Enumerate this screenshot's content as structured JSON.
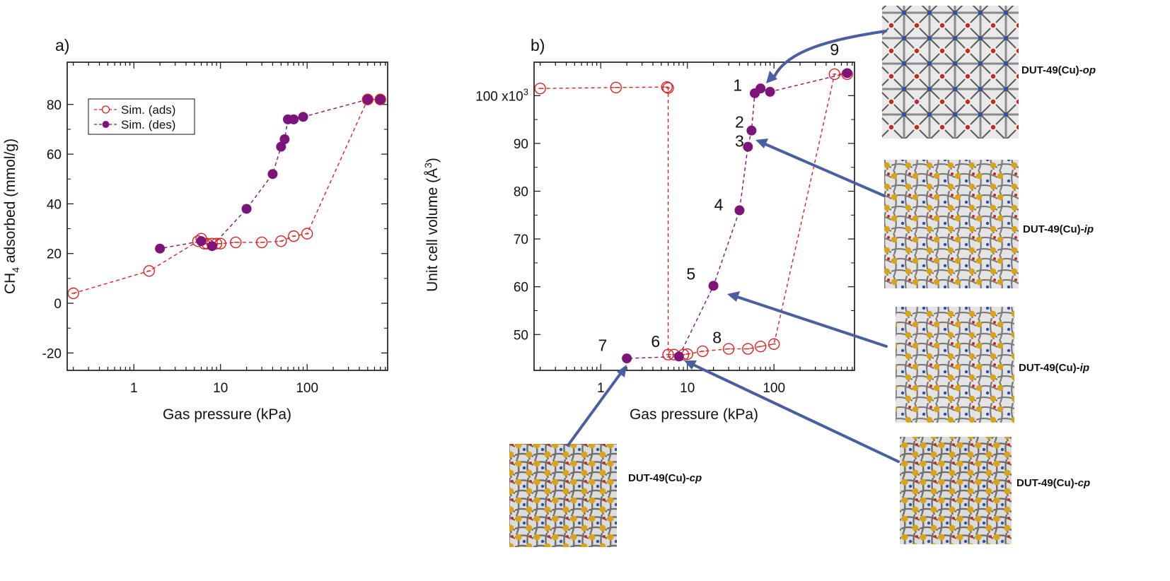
{
  "colors": {
    "ads": "#e02020",
    "des": "#7d1479",
    "arrow": "#4a5fa0",
    "frame": "#111111"
  },
  "chart_data": [
    {
      "type": "scatter",
      "panel_label": "a)",
      "xlabel": "Gas pressure (kPa)",
      "ylabel_main": "CH",
      "ylabel_sub": "4",
      "ylabel_rest": " adsorbed (mmol/g)",
      "xscale": "log",
      "xlim": [
        0.17,
        850
      ],
      "ylim": [
        -27,
        97
      ],
      "xticks": [
        {
          "value": 1,
          "label": "1"
        },
        {
          "value": 10,
          "label": "10"
        },
        {
          "value": 100,
          "label": "100"
        }
      ],
      "yticks": [
        -20,
        0,
        20,
        40,
        60,
        80
      ],
      "legend": {
        "position": "top-left",
        "entries": [
          "Sim. (ads)",
          "Sim. (des)"
        ]
      },
      "series": [
        {
          "name": "Sim. (ads)",
          "marker": "open-circle",
          "x": [
            0.2,
            1.5,
            5.5,
            6,
            6.5,
            7,
            8,
            9,
            10,
            15,
            30,
            50,
            70,
            100,
            500,
            700
          ],
          "y": [
            4,
            13,
            25,
            26,
            24,
            24,
            24,
            24,
            24,
            24.5,
            24.5,
            25,
            27,
            28,
            82,
            82
          ]
        },
        {
          "name": "Sim. (des)",
          "marker": "filled-circle",
          "x": [
            700,
            500,
            90,
            70,
            60,
            55,
            50,
            40,
            20,
            8,
            6,
            2
          ],
          "y": [
            82,
            82,
            75,
            74,
            74,
            66,
            63,
            52,
            38,
            23,
            25,
            22
          ]
        }
      ]
    },
    {
      "type": "scatter",
      "panel_label": "b)",
      "xlabel": "Gas pressure (kPa)",
      "ylabel_main": "Unit cell volume (Å",
      "ylabel_sup": "3",
      "ylabel_rest": ")",
      "xscale": "log",
      "xlim": [
        0.17,
        850
      ],
      "ylim": [
        42.5,
        107
      ],
      "xticks": [
        {
          "value": 1,
          "label": "1"
        },
        {
          "value": 10,
          "label": "10"
        },
        {
          "value": 100,
          "label": "100"
        }
      ],
      "yticks": [
        {
          "value": 50,
          "label": "50"
        },
        {
          "value": 60,
          "label": "60"
        },
        {
          "value": 70,
          "label": "70"
        },
        {
          "value": 80,
          "label": "80"
        },
        {
          "value": 90,
          "label": "90"
        },
        {
          "value": 100,
          "label": "100 x10",
          "sup": "3"
        }
      ],
      "series": [
        {
          "name": "adsorption",
          "marker": "open-circle",
          "x": [
            0.2,
            1.5,
            5.8,
            6,
            6,
            7,
            9,
            10,
            15,
            30,
            50,
            70,
            100,
            500,
            700
          ],
          "y": [
            101.5,
            101.7,
            101.8,
            101.6,
            45.8,
            45.8,
            45.8,
            45.9,
            46.5,
            47,
            47,
            47.5,
            48,
            104.5,
            104.5
          ]
        },
        {
          "name": "desorption",
          "marker": "filled-circle",
          "x": [
            700,
            90,
            70,
            60,
            55,
            50,
            40,
            20,
            8,
            2
          ],
          "y": [
            104.7,
            100.8,
            101.5,
            100.5,
            92.7,
            89.3,
            76,
            60.2,
            45.4,
            45
          ]
        }
      ],
      "point_labels": [
        {
          "text": "1",
          "x": 38,
          "y": 101
        },
        {
          "text": "2",
          "x": 40,
          "y": 93.3
        },
        {
          "text": "3",
          "x": 40,
          "y": 89.3
        },
        {
          "text": "4",
          "x": 23,
          "y": 76
        },
        {
          "text": "5",
          "x": 11,
          "y": 61.5
        },
        {
          "text": "6",
          "x": 4.3,
          "y": 47.4
        },
        {
          "text": "7",
          "x": 1.05,
          "y": 46.6
        },
        {
          "text": "8",
          "x": 22,
          "y": 48.2
        },
        {
          "text": "9",
          "x": 500,
          "y": 108.5
        }
      ]
    }
  ],
  "structures": [
    {
      "base": "DUT-49(Cu)-",
      "suffix": "op",
      "type": "op"
    },
    {
      "base": "DUT-49(Cu)-",
      "suffix": "ip",
      "type": "ip"
    },
    {
      "base": "DUT-49(Cu)-",
      "suffix": "ip",
      "type": "ip"
    },
    {
      "base": "DUT-49(Cu)-",
      "suffix": "cp",
      "type": "cp"
    },
    {
      "base": "DUT-49(Cu)-",
      "suffix": "cp",
      "type": "cp"
    }
  ]
}
